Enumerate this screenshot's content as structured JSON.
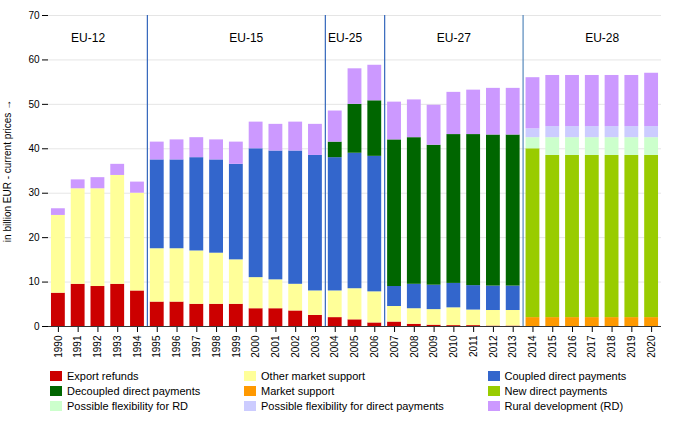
{
  "chart_data": {
    "type": "bar",
    "stacked": true,
    "grid": true,
    "ylabel": "in billion EUR - current prices",
    "categories": [
      1990,
      1991,
      1992,
      1993,
      1994,
      1995,
      1996,
      1997,
      1998,
      1999,
      2000,
      2001,
      2002,
      2003,
      2004,
      2005,
      2006,
      2007,
      2008,
      2009,
      2010,
      2011,
      2012,
      2013,
      2014,
      2015,
      2016,
      2017,
      2018,
      2019,
      2020
    ],
    "series": [
      {
        "name": "Export refunds",
        "color": "#cc0000",
        "values": [
          7.5,
          9.5,
          9.0,
          9.5,
          8.0,
          5.5,
          5.5,
          5.0,
          5.0,
          5.0,
          4.0,
          4.0,
          3.5,
          2.5,
          2.0,
          1.5,
          0.8,
          1.0,
          0.5,
          0.3,
          0.2,
          0.2,
          0.1,
          0.1,
          0.0,
          0.0,
          0.0,
          0.0,
          0.0,
          0.0,
          0.0
        ]
      },
      {
        "name": "Other market support",
        "color": "#ffff99",
        "values": [
          17.5,
          21.5,
          22.0,
          24.5,
          22.0,
          12.0,
          12.0,
          12.0,
          11.5,
          10.0,
          7.0,
          6.5,
          6.0,
          5.5,
          6.0,
          7.0,
          7.0,
          3.5,
          3.5,
          3.5,
          4.0,
          3.5,
          3.5,
          3.5,
          0.0,
          0.0,
          0.0,
          0.0,
          0.0,
          0.0,
          0.0
        ]
      },
      {
        "name": "Coupled direct payments",
        "color": "#3366cc",
        "values": [
          0.0,
          0.0,
          0.0,
          0.0,
          0.0,
          20.0,
          20.0,
          21.0,
          21.0,
          21.5,
          29.0,
          29.0,
          30.0,
          30.5,
          30.0,
          30.5,
          30.5,
          4.5,
          5.5,
          5.5,
          5.5,
          5.5,
          5.5,
          5.5,
          0.0,
          0.0,
          0.0,
          0.0,
          0.0,
          0.0,
          0.0
        ]
      },
      {
        "name": "Decoupled direct payments",
        "color": "#006600",
        "values": [
          0.0,
          0.0,
          0.0,
          0.0,
          0.0,
          0.0,
          0.0,
          0.0,
          0.0,
          0.0,
          0.0,
          0.0,
          0.0,
          0.0,
          3.5,
          11.0,
          12.5,
          33.0,
          33.0,
          31.5,
          33.5,
          34.0,
          34.0,
          34.0,
          0.0,
          0.0,
          0.0,
          0.0,
          0.0,
          0.0,
          0.0
        ]
      },
      {
        "name": "Market support",
        "color": "#ff9900",
        "values": [
          0.0,
          0.0,
          0.0,
          0.0,
          0.0,
          0.0,
          0.0,
          0.0,
          0.0,
          0.0,
          0.0,
          0.0,
          0.0,
          0.0,
          0.0,
          0.0,
          0.0,
          0.0,
          0.0,
          0.0,
          0.0,
          0.0,
          0.0,
          0.0,
          2.0,
          2.0,
          2.0,
          2.0,
          2.0,
          2.0,
          2.0
        ]
      },
      {
        "name": "New direct payments",
        "color": "#99cc00",
        "values": [
          0.0,
          0.0,
          0.0,
          0.0,
          0.0,
          0.0,
          0.0,
          0.0,
          0.0,
          0.0,
          0.0,
          0.0,
          0.0,
          0.0,
          0.0,
          0.0,
          0.0,
          0.0,
          0.0,
          0.0,
          0.0,
          0.0,
          0.0,
          0.0,
          38.0,
          36.5,
          36.5,
          36.5,
          36.5,
          36.5,
          36.5
        ]
      },
      {
        "name": "Possible flexibility for RD",
        "color": "#ccffcc",
        "values": [
          0.0,
          0.0,
          0.0,
          0.0,
          0.0,
          0.0,
          0.0,
          0.0,
          0.0,
          0.0,
          0.0,
          0.0,
          0.0,
          0.0,
          0.0,
          0.0,
          0.0,
          0.0,
          0.0,
          0.0,
          0.0,
          0.0,
          0.0,
          0.0,
          2.5,
          4.0,
          4.0,
          4.0,
          4.0,
          4.0,
          4.0
        ]
      },
      {
        "name": "Possible flexibility for direct payments",
        "color": "#ccccff",
        "values": [
          0.0,
          0.0,
          0.0,
          0.0,
          0.0,
          0.0,
          0.0,
          0.0,
          0.0,
          0.0,
          0.0,
          0.0,
          0.0,
          0.0,
          0.0,
          0.0,
          0.0,
          0.0,
          0.0,
          0.0,
          0.0,
          0.0,
          0.0,
          0.0,
          2.0,
          2.5,
          2.5,
          2.5,
          2.5,
          2.5,
          2.5
        ]
      },
      {
        "name": "Rural development (RD)",
        "color": "#cc99ff",
        "values": [
          1.5,
          2.0,
          2.5,
          2.5,
          2.5,
          4.0,
          4.5,
          4.5,
          4.5,
          5.0,
          6.0,
          6.0,
          6.5,
          7.0,
          7.0,
          8.0,
          8.0,
          8.5,
          8.5,
          9.0,
          9.5,
          10.0,
          10.5,
          10.5,
          11.5,
          11.5,
          11.5,
          11.5,
          11.5,
          11.5,
          12.0
        ]
      }
    ],
    "ylim": [
      0,
      70
    ],
    "yticks": [
      0,
      10,
      20,
      30,
      40,
      50,
      60,
      70
    ],
    "annotations": [
      {
        "text": "EU-12",
        "x": 1991.5,
        "y": 65
      },
      {
        "text": "EU-15",
        "x": 1999.5,
        "y": 65
      },
      {
        "text": "EU-25",
        "x": 2004.5,
        "y": 65
      },
      {
        "text": "EU-27",
        "x": 2010.0,
        "y": 65
      },
      {
        "text": "EU-28",
        "x": 2017.5,
        "y": 65
      }
    ],
    "dividers": [
      {
        "x": 1994.5,
        "line_style": "solid",
        "color": "#3366bb"
      },
      {
        "x": 2003.5,
        "line_style": "solid",
        "color": "#3366bb"
      },
      {
        "x": 2006.5,
        "line_style": "solid",
        "color": "#3366bb"
      },
      {
        "x": 2013.5,
        "line_style": "dashed",
        "color": "#5588bb"
      }
    ]
  }
}
